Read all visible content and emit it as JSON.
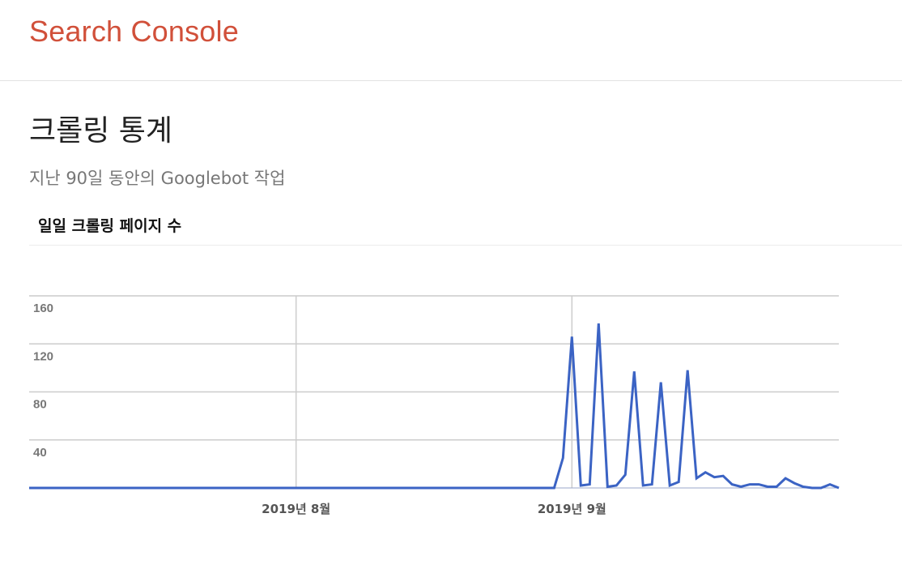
{
  "header": {
    "brand": "Search Console"
  },
  "page": {
    "title": "크롤링 통계",
    "subtitle": "지난 90일 동안의 Googlebot 작업",
    "section_label": "일일 크롤링 페이지 수"
  },
  "colors": {
    "brand": "#d1503a",
    "series": "#3b63c4",
    "grid": "#cccccc"
  },
  "chart_data": {
    "type": "line",
    "title": "",
    "xlabel": "",
    "ylabel": "",
    "ylim": [
      0,
      160
    ],
    "yticks": [
      160,
      120,
      80,
      40
    ],
    "grid": true,
    "x_tick_labels": [
      {
        "label": "2019년 8월",
        "index": 30
      },
      {
        "label": "2019년 9월",
        "index": 61
      }
    ],
    "series": [
      {
        "values": [
          0,
          0,
          0,
          0,
          0,
          0,
          0,
          0,
          0,
          0,
          0,
          0,
          0,
          0,
          0,
          0,
          0,
          0,
          0,
          0,
          0,
          0,
          0,
          0,
          0,
          0,
          0,
          0,
          0,
          0,
          0,
          0,
          0,
          0,
          0,
          0,
          0,
          0,
          0,
          0,
          0,
          0,
          0,
          0,
          0,
          0,
          0,
          0,
          0,
          0,
          0,
          0,
          0,
          0,
          0,
          0,
          0,
          0,
          0,
          0,
          25,
          126,
          2,
          3,
          137,
          1,
          2,
          11,
          97,
          2,
          3,
          88,
          2,
          5,
          98,
          8,
          13,
          9,
          10,
          3,
          1,
          3,
          3,
          1,
          1,
          8,
          4,
          1,
          0,
          0,
          3,
          0
        ]
      }
    ]
  }
}
